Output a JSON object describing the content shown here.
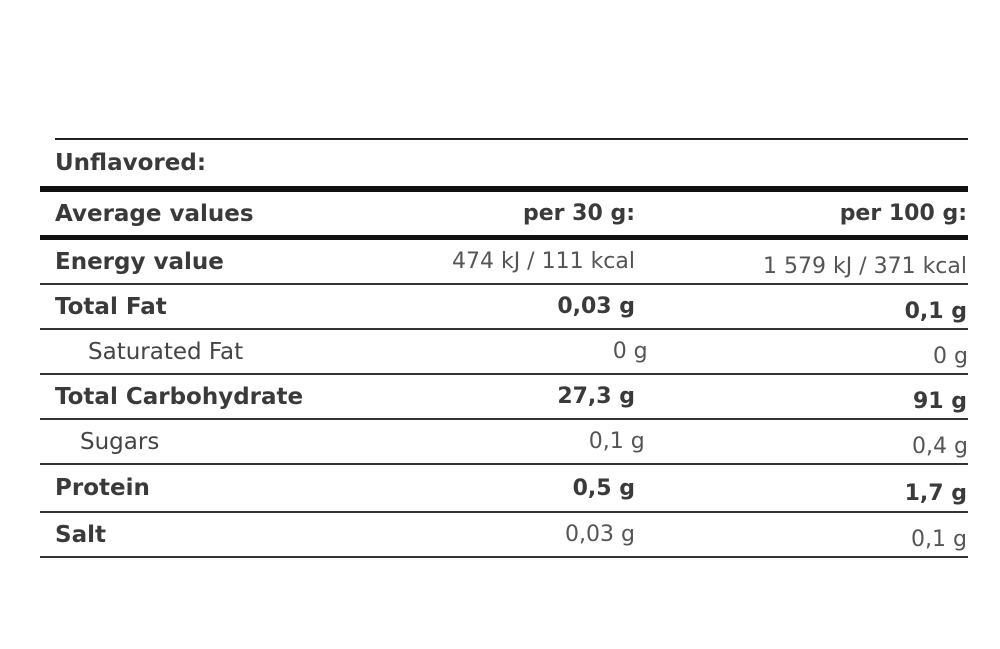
{
  "table": {
    "title": "Unflavored:",
    "header": {
      "label": "Average values",
      "per30": "per 30 g:",
      "per100": "per 100 g:"
    },
    "rows": [
      {
        "label": "Energy value",
        "per30": "474 kJ / 111 kcal",
        "per100": "1 579 kJ / 371 kcal"
      },
      {
        "label": "Total Fat",
        "per30": "0,03 g",
        "per100": "0,1 g"
      },
      {
        "label": "Saturated Fat",
        "per30": "0 g",
        "per100": "0 g"
      },
      {
        "label": "Total Carbohydrate",
        "per30": "27,3 g",
        "per100": "91 g"
      },
      {
        "label": "Sugars",
        "per30": "0,1 g",
        "per100": "0,4 g"
      },
      {
        "label": "Protein",
        "per30": "0,5 g",
        "per100": "1,7 g"
      },
      {
        "label": "Salt",
        "per30": "0,03 g",
        "per100": "0,1 g"
      }
    ]
  }
}
